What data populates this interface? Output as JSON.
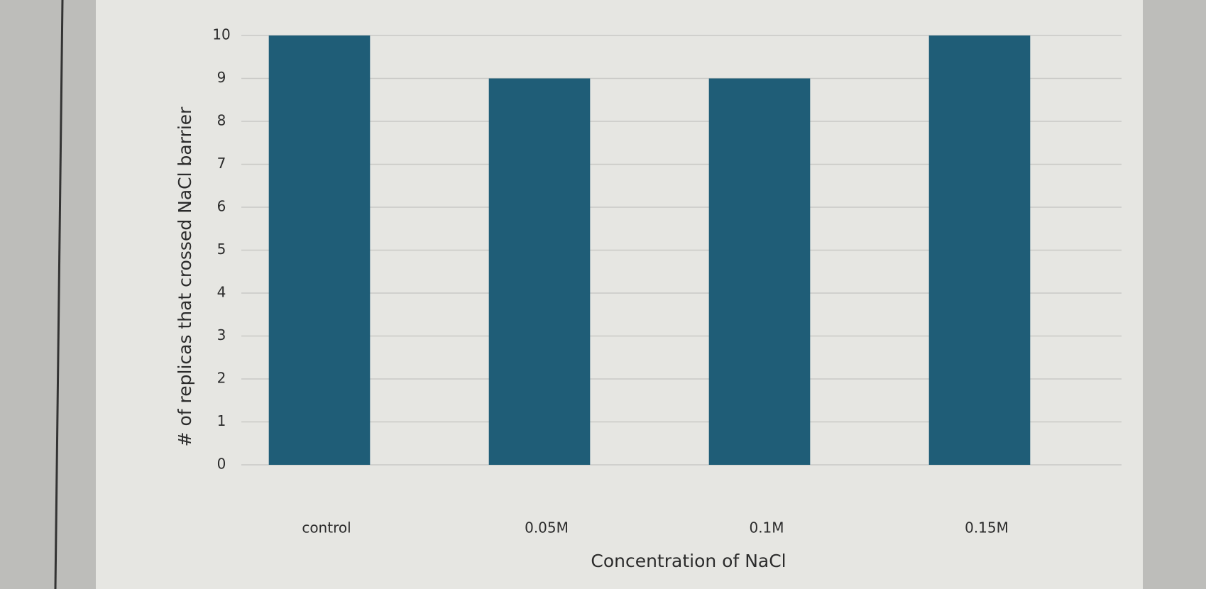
{
  "chart_data": {
    "type": "bar",
    "x_label": "Concentration of NaCl",
    "y_label": "# of replicas that crossed NaCl barrier",
    "categories": [
      "control",
      "0.05M",
      "0.1M",
      "0.15M"
    ],
    "values": [
      10,
      9,
      9,
      10
    ],
    "color": "#1f5d77",
    "ylim": [
      0,
      10
    ],
    "yticks": [
      0,
      1,
      2,
      3,
      4,
      5,
      6,
      7,
      8,
      9,
      10
    ],
    "grid": true
  }
}
